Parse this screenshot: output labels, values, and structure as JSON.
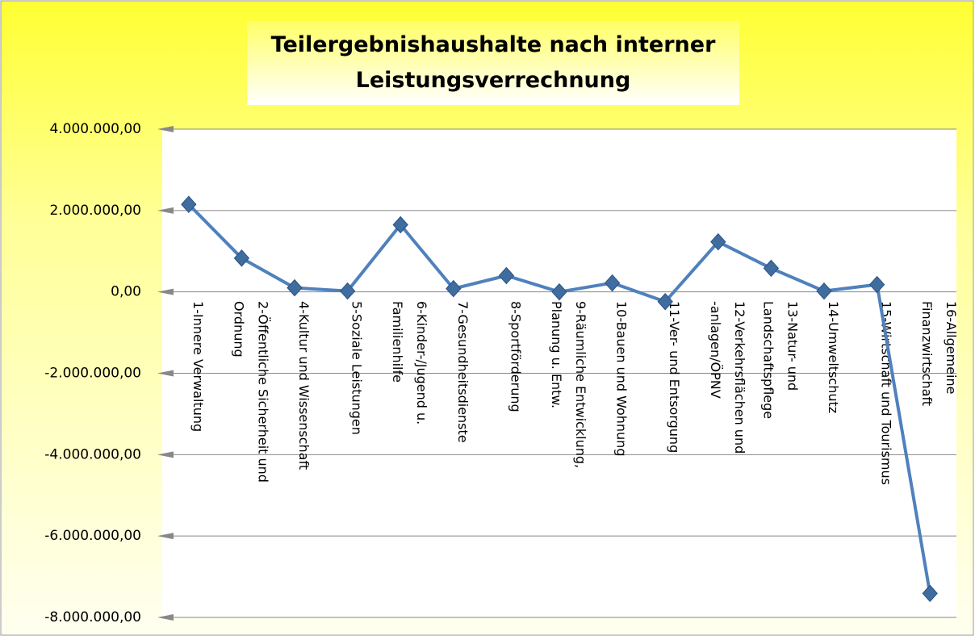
{
  "chart_data": {
    "type": "line",
    "title": "Teilergebnishaushalte nach interner Leistungsverrechnung",
    "categories": [
      "1-Innere Verwaltung",
      "2-Öffentliche Sicherheit und Ordnung",
      "4-Kultur und Wissenschaft",
      "5-Soziale Leistungen",
      "6-Kinder-/Jugend u. Familienhilfe",
      "7-Gesundheitsdienste",
      "8-Sportförderung",
      "9-Räumliche Entwicklung, Planung u. Entw.",
      "10-Bauen und Wohnung",
      "11-Ver- und Entsorgung",
      "12-Verkehrsflächen und -anlagen/ÖPNV",
      "13-Natur- und Landschaftspflege",
      "14-Umweltschutz",
      "15-Wirtschaft und Tourismus",
      "16-Allgemeine Finanzwirtschaft"
    ],
    "values": [
      2150000,
      830000,
      100000,
      20000,
      1650000,
      80000,
      400000,
      0,
      220000,
      -240000,
      1230000,
      580000,
      20000,
      180000,
      -7410000
    ],
    "color": "#4f81bd",
    "ylim": [
      -8000000,
      4000000
    ],
    "yticks": [
      {
        "value": -8000000,
        "label": "-8.000.000,00"
      },
      {
        "value": -6000000,
        "label": "-6.000.000,00"
      },
      {
        "value": -4000000,
        "label": "-4.000.000,00"
      },
      {
        "value": -2000000,
        "label": "-2.000.000,00"
      },
      {
        "value": 0,
        "label": "0,00"
      },
      {
        "value": 2000000,
        "label": "2.000.000,00"
      },
      {
        "value": 4000000,
        "label": "4.000.000,00"
      }
    ],
    "grid": true
  }
}
